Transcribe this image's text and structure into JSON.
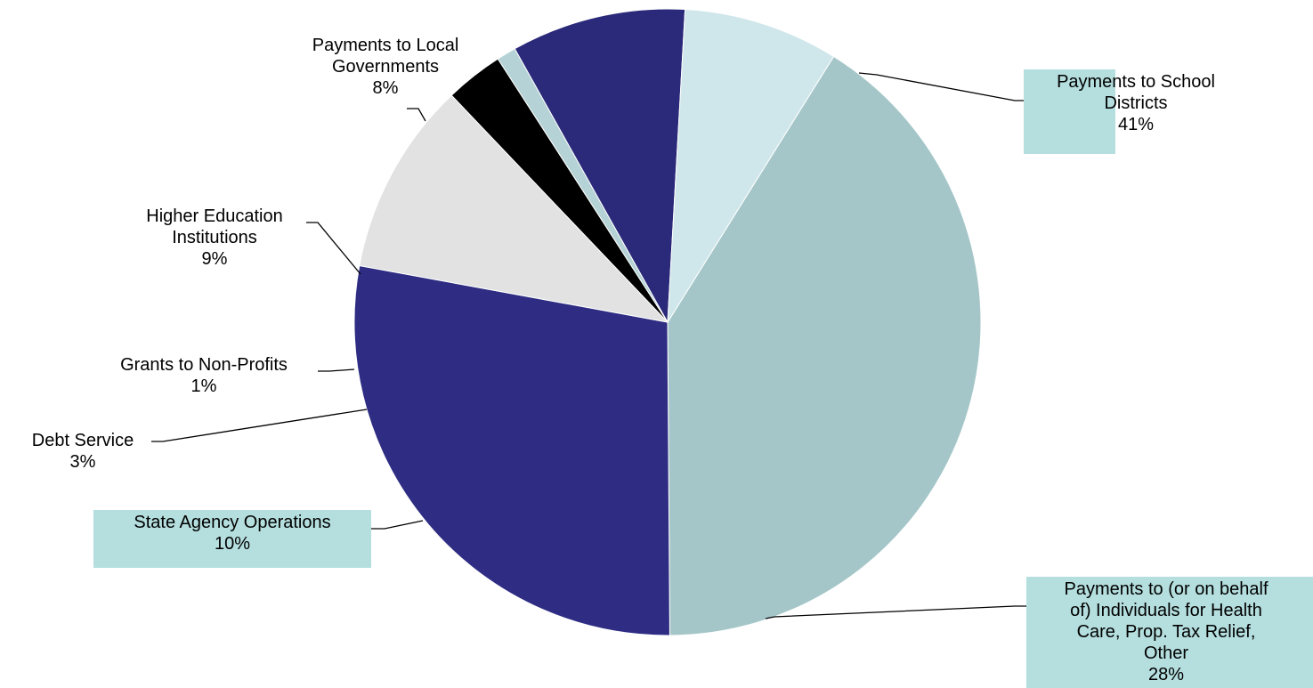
{
  "chart_data": {
    "type": "pie",
    "slices": [
      {
        "name": "Payments to School Districts",
        "lines": [
          "Payments to School",
          "Districts"
        ],
        "pct_label": "41%",
        "value": 41,
        "color": "#a5c6c8",
        "label_bg": "#b5dede"
      },
      {
        "name": "Payments to (or on behalf of) Individuals for Health Care, Prop. Tax Relief, Other",
        "lines": [
          "Payments to (or on behalf",
          "of) Individuals for Health",
          "Care, Prop. Tax Relief,",
          "Other"
        ],
        "pct_label": "28%",
        "value": 28,
        "color": "#2e2d83",
        "label_bg": "#b5dede"
      },
      {
        "name": "State Agency Operations",
        "lines": [
          "State Agency Operations"
        ],
        "pct_label": "10%",
        "value": 10,
        "color": "#e2e2e2",
        "label_bg": "#b5dede"
      },
      {
        "name": "Debt Service",
        "lines": [
          "Debt Service"
        ],
        "pct_label": "3%",
        "value": 3,
        "color": "#000000",
        "label_bg": null
      },
      {
        "name": "Grants to Non-Profits",
        "lines": [
          "Grants to Non-Profits"
        ],
        "pct_label": "1%",
        "value": 1,
        "color": "#b5d3d6",
        "label_bg": null
      },
      {
        "name": "Higher Education Institutions",
        "lines": [
          "Higher Education",
          "Institutions"
        ],
        "pct_label": "9%",
        "value": 9,
        "color": "#2b2a7a",
        "label_bg": null
      },
      {
        "name": "Payments to Local Governments",
        "lines": [
          "Payments to Local",
          "Governments"
        ],
        "pct_label": "8%",
        "value": 8,
        "color": "#cfe7eb",
        "label_bg": null
      }
    ],
    "legend": "none"
  }
}
